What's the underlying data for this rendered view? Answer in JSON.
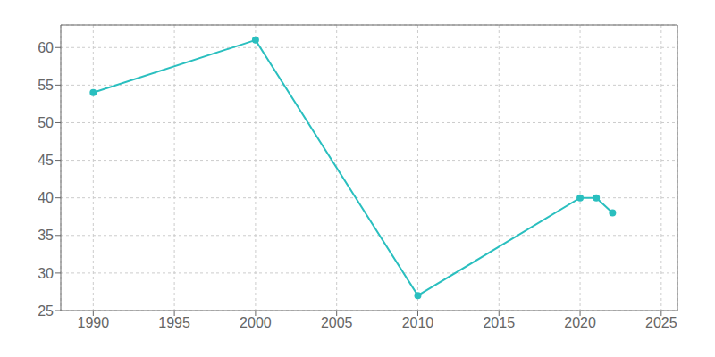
{
  "chart_data": {
    "type": "line",
    "x": [
      1990,
      2000,
      2010,
      2020,
      2021,
      2022
    ],
    "values": [
      54,
      61,
      27,
      40,
      40,
      38
    ],
    "color": "#2abfbf",
    "marker": "circle",
    "xlim": [
      1988,
      2026
    ],
    "ylim": [
      25,
      63
    ],
    "xticks": [
      1990,
      1995,
      2000,
      2005,
      2010,
      2015,
      2020,
      2025
    ],
    "yticks": [
      25,
      30,
      35,
      40,
      45,
      50,
      55,
      60
    ],
    "grid": true
  }
}
